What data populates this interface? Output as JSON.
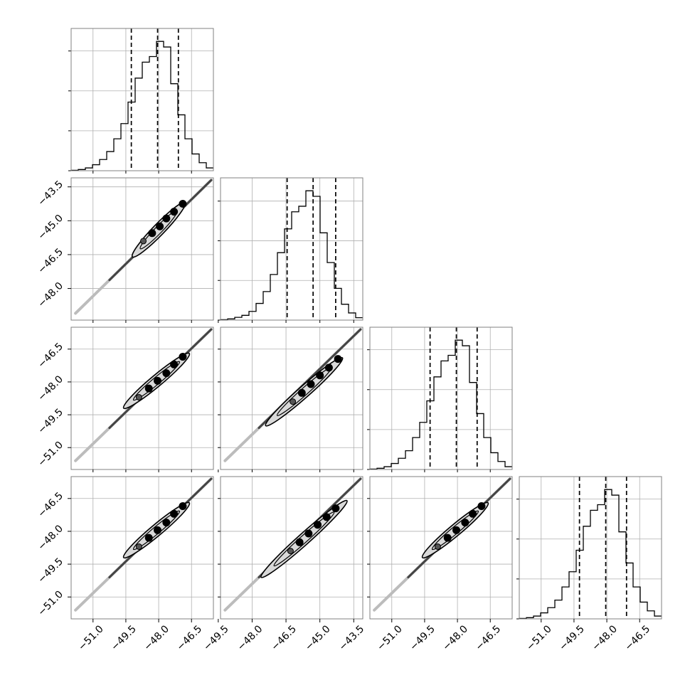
{
  "chart_data": {
    "type": "corner",
    "grid": true,
    "n_params": 4,
    "quantiles": [
      0.16,
      0.5,
      0.84
    ],
    "panel_ranges": [
      [
        -52.0,
        -45.5
      ],
      [
        -49.4,
        -43.1
      ],
      [
        -52.0,
        -45.5
      ],
      [
        -52.0,
        -45.5
      ]
    ],
    "tick_values": [
      [
        -51.0,
        -49.5,
        -48.0,
        -46.5
      ],
      [
        -49.5,
        -48.0,
        -46.5,
        -45.0,
        -43.5
      ],
      [
        -51.0,
        -49.5,
        -48.0,
        -46.5
      ],
      [
        -51.0,
        -49.5,
        -48.0,
        -46.5
      ]
    ],
    "tick_labels": [
      [
        "−51.0",
        "−49.5",
        "−48.0",
        "−46.5"
      ],
      [
        "−49.5",
        "−48.0",
        "−46.5",
        "−45.0",
        "−43.5"
      ],
      [
        "−51.0",
        "−49.5",
        "−48.0",
        "−46.5"
      ],
      [
        "−51.0",
        "−49.5",
        "−48.0",
        "−46.5"
      ]
    ],
    "histograms": [
      {
        "bin_edges": [
          -52.0,
          -51.675,
          -51.35,
          -51.025,
          -50.7,
          -50.375,
          -50.05,
          -49.725,
          -49.4,
          -49.075,
          -48.75,
          -48.425,
          -48.1,
          -47.775,
          -47.45,
          -47.125,
          -46.8,
          -46.475,
          -46.15,
          -45.825,
          -45.5
        ],
        "counts": [
          1,
          3,
          7,
          15,
          28,
          48,
          80,
          118,
          172,
          232,
          272,
          286,
          324,
          310,
          218,
          140,
          80,
          42,
          20,
          7
        ],
        "quantile_lines": [
          -49.25,
          -48.05,
          -47.1
        ]
      },
      {
        "bin_edges": [
          -49.4,
          -49.085,
          -48.77,
          -48.455,
          -48.14,
          -47.825,
          -47.51,
          -47.195,
          -46.88,
          -46.565,
          -46.25,
          -45.935,
          -45.62,
          -45.305,
          -44.99,
          -44.675,
          -44.36,
          -44.045,
          -43.73,
          -43.415,
          -43.1
        ],
        "counts": [
          1,
          3,
          7,
          12,
          22,
          42,
          72,
          115,
          170,
          230,
          273,
          287,
          326,
          312,
          220,
          145,
          80,
          40,
          18,
          6
        ],
        "quantile_lines": [
          -46.45,
          -45.3,
          -44.3
        ]
      },
      {
        "bin_edges": [
          -52.0,
          -51.675,
          -51.35,
          -51.025,
          -50.7,
          -50.375,
          -50.05,
          -49.725,
          -49.4,
          -49.075,
          -48.75,
          -48.425,
          -48.1,
          -47.775,
          -47.45,
          -47.125,
          -46.8,
          -46.475,
          -46.15,
          -45.825,
          -45.5
        ],
        "counts": [
          1,
          3,
          7,
          15,
          28,
          47,
          80,
          118,
          172,
          232,
          272,
          286,
          324,
          310,
          218,
          140,
          80,
          42,
          20,
          7
        ],
        "quantile_lines": [
          -49.25,
          -48.05,
          -47.1
        ]
      },
      {
        "bin_edges": [
          -52.0,
          -51.675,
          -51.35,
          -51.025,
          -50.7,
          -50.375,
          -50.05,
          -49.725,
          -49.4,
          -49.075,
          -48.75,
          -48.425,
          -48.1,
          -47.775,
          -47.45,
          -47.125,
          -46.8,
          -46.475,
          -46.15,
          -45.825,
          -45.5
        ],
        "counts": [
          1,
          3,
          7,
          15,
          28,
          47,
          80,
          118,
          172,
          232,
          272,
          286,
          324,
          310,
          218,
          140,
          80,
          42,
          20,
          7
        ],
        "quantile_lines": [
          -49.25,
          -48.05,
          -47.1
        ]
      }
    ],
    "joint_panels": [
      {
        "x_param": 0,
        "y_param": 1,
        "cloud": [
          [
            -51.8,
            -49.1
          ],
          [
            -45.6,
            -43.2
          ]
        ],
        "contour_outer": [
          [
            -49.2,
            -46.6
          ],
          [
            -46.8,
            -44.2
          ]
        ],
        "dots": [
          [
            -48.7,
            -45.9
          ],
          [
            -48.3,
            -45.55
          ],
          [
            -47.95,
            -45.25
          ],
          [
            -47.65,
            -44.9
          ],
          [
            -47.3,
            -44.6
          ],
          [
            -46.9,
            -44.25
          ]
        ]
      },
      {
        "x_param": 0,
        "y_param": 2,
        "cloud": [
          [
            -51.8,
            -51.6
          ],
          [
            -45.6,
            -45.6
          ]
        ],
        "contour_outer": [
          [
            -49.6,
            -49.2
          ],
          [
            -46.6,
            -46.7
          ]
        ],
        "dots": [
          [
            -48.9,
            -48.7
          ],
          [
            -48.45,
            -48.3
          ],
          [
            -48.05,
            -47.95
          ],
          [
            -47.65,
            -47.6
          ],
          [
            -47.3,
            -47.2
          ],
          [
            -46.9,
            -46.85
          ]
        ]
      },
      {
        "x_param": 1,
        "y_param": 2,
        "cloud": [
          [
            -49.2,
            -51.6
          ],
          [
            -43.2,
            -45.6
          ]
        ],
        "contour_outer": [
          [
            -47.4,
            -50.0
          ],
          [
            -44.0,
            -46.9
          ]
        ],
        "dots": [
          [
            -46.2,
            -48.9
          ],
          [
            -45.8,
            -48.5
          ],
          [
            -45.4,
            -48.1
          ],
          [
            -45.0,
            -47.7
          ],
          [
            -44.6,
            -47.35
          ],
          [
            -44.2,
            -46.95
          ]
        ]
      },
      {
        "x_param": 0,
        "y_param": 3,
        "cloud": [
          [
            -51.8,
            -51.6
          ],
          [
            -45.6,
            -45.6
          ]
        ],
        "contour_outer": [
          [
            -49.6,
            -49.2
          ],
          [
            -46.6,
            -46.7
          ]
        ],
        "dots": [
          [
            -48.9,
            -48.7
          ],
          [
            -48.45,
            -48.3
          ],
          [
            -48.05,
            -47.95
          ],
          [
            -47.65,
            -47.6
          ],
          [
            -47.3,
            -47.2
          ],
          [
            -46.9,
            -46.85
          ]
        ]
      },
      {
        "x_param": 1,
        "y_param": 3,
        "cloud": [
          [
            -49.2,
            -51.6
          ],
          [
            -43.2,
            -45.6
          ]
        ],
        "contour_outer": [
          [
            -47.6,
            -50.1
          ],
          [
            -43.8,
            -46.6
          ]
        ],
        "dots": [
          [
            -46.3,
            -48.9
          ],
          [
            -45.9,
            -48.5
          ],
          [
            -45.5,
            -48.1
          ],
          [
            -45.1,
            -47.7
          ],
          [
            -44.7,
            -47.35
          ],
          [
            -44.3,
            -46.95
          ]
        ]
      },
      {
        "x_param": 2,
        "y_param": 3,
        "cloud": [
          [
            -51.8,
            -51.6
          ],
          [
            -45.6,
            -45.6
          ]
        ],
        "contour_outer": [
          [
            -49.6,
            -49.2
          ],
          [
            -46.6,
            -46.7
          ]
        ],
        "dots": [
          [
            -48.9,
            -48.7
          ],
          [
            -48.45,
            -48.3
          ],
          [
            -48.05,
            -47.95
          ],
          [
            -47.65,
            -47.6
          ],
          [
            -47.3,
            -47.2
          ],
          [
            -46.9,
            -46.85
          ]
        ]
      }
    ]
  }
}
